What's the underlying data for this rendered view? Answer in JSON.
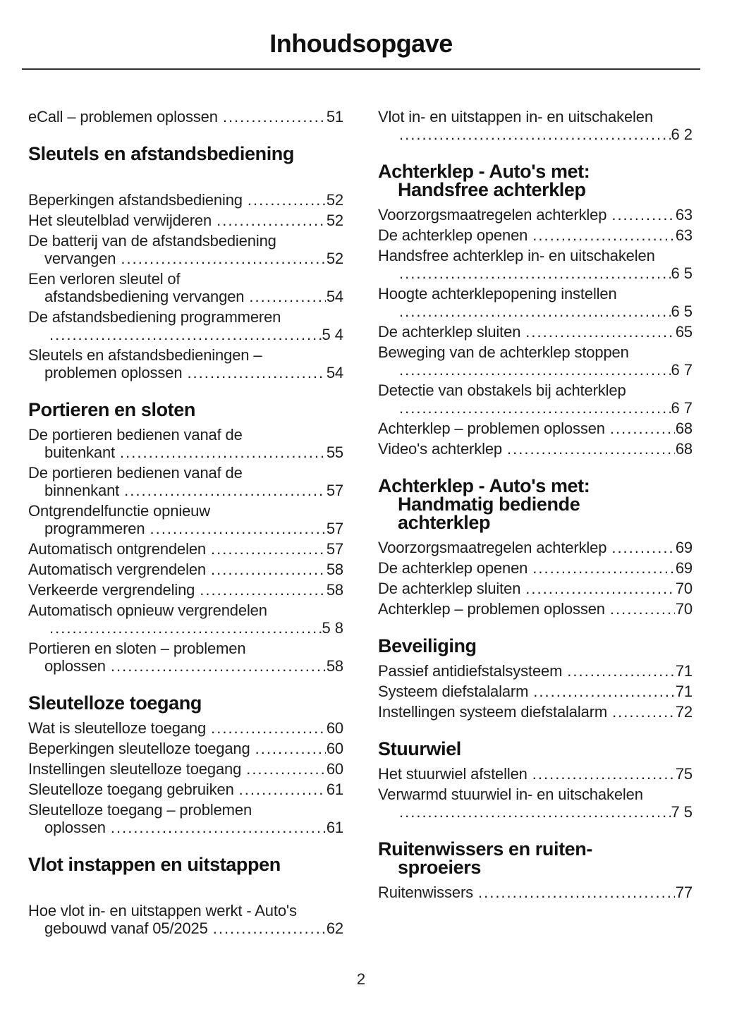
{
  "page_title": "Inhoudsopgave",
  "page_number": "2",
  "columns": {
    "left": [
      {
        "type": "entry",
        "lines": [
          "eCall – problemen oplossen"
        ],
        "page": "51"
      },
      {
        "type": "header",
        "spaced": true,
        "lines": [
          "Sleutels en afstandsbediening"
        ]
      },
      {
        "type": "entry",
        "lines": [
          "Beperkingen afstandsbediening"
        ],
        "page": "52"
      },
      {
        "type": "entry",
        "lines": [
          "Het sleutelblad verwijderen"
        ],
        "page": "52"
      },
      {
        "type": "entry",
        "lines": [
          "De batterij van de afstandsbediening",
          "vervangen"
        ],
        "page": "52"
      },
      {
        "type": "entry",
        "lines": [
          "Een verloren sleutel of",
          "afstandsbediening vervangen"
        ],
        "page": "54"
      },
      {
        "type": "entry",
        "lines": [
          "De afstandsbediening programmeren",
          ""
        ],
        "page": "54"
      },
      {
        "type": "entry",
        "lines": [
          "Sleutels en afstandsbedieningen –",
          "problemen oplossen"
        ],
        "page": "54"
      },
      {
        "type": "header",
        "spaced": false,
        "lines": [
          "Portieren en sloten"
        ]
      },
      {
        "type": "entry",
        "lines": [
          "De portieren bedienen vanaf de",
          "buitenkant"
        ],
        "page": "55"
      },
      {
        "type": "entry",
        "lines": [
          "De portieren bedienen vanaf de",
          "binnenkant"
        ],
        "page": "57"
      },
      {
        "type": "entry",
        "lines": [
          "Ontgrendelfunctie opnieuw",
          "programmeren"
        ],
        "page": "57"
      },
      {
        "type": "entry",
        "lines": [
          "Automatisch ontgrendelen"
        ],
        "page": "57"
      },
      {
        "type": "entry",
        "lines": [
          "Automatisch vergrendelen"
        ],
        "page": "58"
      },
      {
        "type": "entry",
        "lines": [
          "Verkeerde vergrendeling"
        ],
        "page": "58"
      },
      {
        "type": "entry",
        "lines": [
          "Automatisch opnieuw vergrendelen",
          ""
        ],
        "page": "58"
      },
      {
        "type": "entry",
        "lines": [
          "Portieren en sloten – problemen",
          "oplossen"
        ],
        "page": "58"
      },
      {
        "type": "header",
        "spaced": false,
        "lines": [
          "Sleutelloze toegang"
        ]
      },
      {
        "type": "entry",
        "lines": [
          "Wat is sleutelloze toegang"
        ],
        "page": "60"
      },
      {
        "type": "entry",
        "lines": [
          "Beperkingen sleutelloze toegang"
        ],
        "page": "60"
      },
      {
        "type": "entry",
        "lines": [
          "Instellingen sleutelloze toegang"
        ],
        "page": "60"
      },
      {
        "type": "entry",
        "lines": [
          "Sleutelloze toegang gebruiken"
        ],
        "page": "61"
      },
      {
        "type": "entry",
        "lines": [
          "Sleutelloze toegang – problemen",
          "oplossen"
        ],
        "page": "61"
      },
      {
        "type": "header",
        "spaced": true,
        "lines": [
          "Vlot instappen en uitstappen"
        ]
      },
      {
        "type": "entry",
        "lines": [
          "Hoe vlot in- en uitstappen werkt - Auto's",
          "gebouwd vanaf 05/2025"
        ],
        "page": "62"
      }
    ],
    "right": [
      {
        "type": "entry",
        "lines": [
          "Vlot in- en uitstappen in- en uitschakelen",
          ""
        ],
        "page": "62"
      },
      {
        "type": "header",
        "spaced": false,
        "lines": [
          "Achterklep - Auto's met:",
          "Handsfree achterklep"
        ]
      },
      {
        "type": "entry",
        "lines": [
          "Voorzorgsmaatregelen achterklep"
        ],
        "page": "63"
      },
      {
        "type": "entry",
        "lines": [
          "De achterklep openen"
        ],
        "page": "63"
      },
      {
        "type": "entry",
        "lines": [
          "Handsfree achterklep in- en uitschakelen",
          ""
        ],
        "page": "65"
      },
      {
        "type": "entry",
        "lines": [
          "Hoogte achterklepopening instellen",
          ""
        ],
        "page": "65"
      },
      {
        "type": "entry",
        "lines": [
          "De achterklep sluiten"
        ],
        "page": "65"
      },
      {
        "type": "entry",
        "lines": [
          "Beweging van de achterklep stoppen",
          ""
        ],
        "page": "67"
      },
      {
        "type": "entry",
        "lines": [
          "Detectie van obstakels bij achterklep",
          ""
        ],
        "page": "67"
      },
      {
        "type": "entry",
        "lines": [
          "Achterklep – problemen oplossen"
        ],
        "page": "68"
      },
      {
        "type": "entry",
        "lines": [
          "Video's achterklep"
        ],
        "page": "68"
      },
      {
        "type": "header",
        "spaced": false,
        "lines": [
          "Achterklep - Auto's met:",
          "Handmatig bediende",
          "achterklep"
        ]
      },
      {
        "type": "entry",
        "lines": [
          "Voorzorgsmaatregelen achterklep"
        ],
        "page": "69"
      },
      {
        "type": "entry",
        "lines": [
          "De achterklep openen"
        ],
        "page": "69"
      },
      {
        "type": "entry",
        "lines": [
          "De achterklep sluiten"
        ],
        "page": "70"
      },
      {
        "type": "entry",
        "lines": [
          "Achterklep – problemen oplossen"
        ],
        "page": "70"
      },
      {
        "type": "header",
        "spaced": false,
        "lines": [
          "Beveiliging"
        ]
      },
      {
        "type": "entry",
        "lines": [
          "Passief antidiefstalsysteem"
        ],
        "page": "71"
      },
      {
        "type": "entry",
        "lines": [
          "Systeem diefstalalarm"
        ],
        "page": "71"
      },
      {
        "type": "entry",
        "lines": [
          "Instellingen systeem diefstalalarm"
        ],
        "page": "72"
      },
      {
        "type": "header",
        "spaced": false,
        "lines": [
          "Stuurwiel"
        ]
      },
      {
        "type": "entry",
        "lines": [
          "Het stuurwiel afstellen"
        ],
        "page": "75"
      },
      {
        "type": "entry",
        "lines": [
          "Verwarmd stuurwiel in- en uitschakelen",
          ""
        ],
        "page": "75"
      },
      {
        "type": "header",
        "spaced": false,
        "lines": [
          "Ruitenwissers en ruiten-",
          "sproeiers"
        ]
      },
      {
        "type": "entry",
        "lines": [
          "Ruitenwissers"
        ],
        "page": "77"
      }
    ]
  }
}
